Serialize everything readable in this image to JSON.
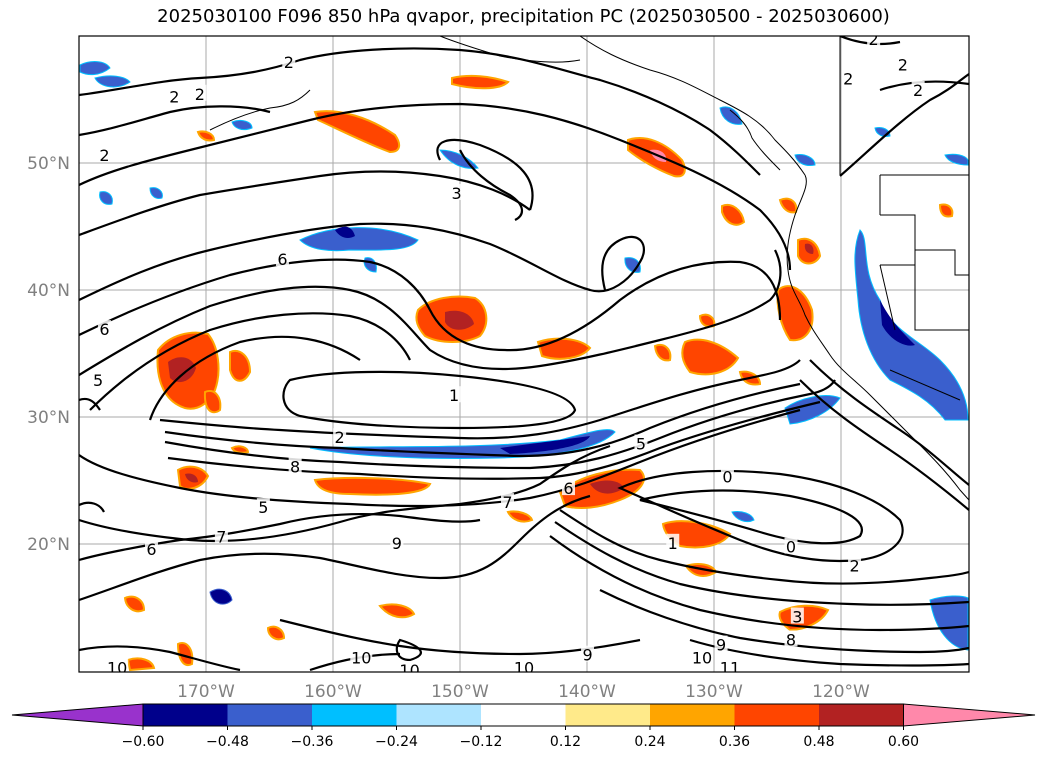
{
  "title": "2025030100 F096 850 hPa qvapor, precipitation PC (2025030500 - 2025030600)",
  "lat_labels": [
    "50°N",
    "40°N",
    "30°N",
    "20°N"
  ],
  "lon_labels": [
    "170°W",
    "160°W",
    "150°W",
    "140°W",
    "130°W",
    "120°W"
  ],
  "colorbar": {
    "ticks": [
      "−0.60",
      "−0.48",
      "−0.36",
      "−0.24",
      "−0.12",
      "0.12",
      "0.24",
      "0.36",
      "0.48",
      "0.60"
    ],
    "colors": [
      "#9932cc",
      "#00008b",
      "#3a5fcd",
      "#00bfff",
      "#aee4ff",
      "#ffffff",
      "#ffea8a",
      "#ffa500",
      "#ff4500",
      "#b22222",
      "#ff88aa"
    ]
  },
  "contour_labels": [
    {
      "text": "2",
      "lon": -163.5,
      "lat": 57.8
    },
    {
      "text": "2",
      "lon": -172.5,
      "lat": 55.1
    },
    {
      "text": "2",
      "lon": -170.5,
      "lat": 55.3
    },
    {
      "text": "2",
      "lon": -178.0,
      "lat": 50.5
    },
    {
      "text": "3",
      "lon": -150.3,
      "lat": 47.5
    },
    {
      "text": "6",
      "lon": -164.0,
      "lat": 42.3
    },
    {
      "text": "6",
      "lon": -178.0,
      "lat": 36.8
    },
    {
      "text": "5",
      "lon": -178.5,
      "lat": 32.8
    },
    {
      "text": "1",
      "lon": -150.5,
      "lat": 31.6
    },
    {
      "text": "2",
      "lon": -159.5,
      "lat": 28.3
    },
    {
      "text": "5",
      "lon": -135.8,
      "lat": 27.8
    },
    {
      "text": "8",
      "lon": -163.0,
      "lat": 26.0
    },
    {
      "text": "0",
      "lon": -129.0,
      "lat": 25.2
    },
    {
      "text": "6",
      "lon": -141.5,
      "lat": 24.3
    },
    {
      "text": "7",
      "lon": -146.3,
      "lat": 23.2
    },
    {
      "text": "5",
      "lon": -165.5,
      "lat": 22.8
    },
    {
      "text": "7",
      "lon": -168.8,
      "lat": 20.5
    },
    {
      "text": "6",
      "lon": -174.3,
      "lat": 19.5
    },
    {
      "text": "9",
      "lon": -155.0,
      "lat": 20.0
    },
    {
      "text": "1",
      "lon": -133.3,
      "lat": 20.0
    },
    {
      "text": "0",
      "lon": -124.0,
      "lat": 19.7
    },
    {
      "text": "2",
      "lon": -119.0,
      "lat": 18.2
    },
    {
      "text": "3",
      "lon": -123.5,
      "lat": 14.2
    },
    {
      "text": "8",
      "lon": -124.0,
      "lat": 12.4
    },
    {
      "text": "9",
      "lon": -129.5,
      "lat": 12.0
    },
    {
      "text": "10",
      "lon": -131.0,
      "lat": 11.0
    },
    {
      "text": "11",
      "lon": -128.8,
      "lat": 10.2
    },
    {
      "text": "9",
      "lon": -140.0,
      "lat": 11.2
    },
    {
      "text": "10",
      "lon": -157.8,
      "lat": 11.0
    },
    {
      "text": "10",
      "lon": -154.0,
      "lat": 10.0
    },
    {
      "text": "10",
      "lon": -177.0,
      "lat": 10.2
    },
    {
      "text": "10",
      "lon": -145.0,
      "lat": 10.2
    },
    {
      "text": "2",
      "lon": -119.5,
      "lat": 56.5
    },
    {
      "text": "2",
      "lon": -117.5,
      "lat": 59.6
    },
    {
      "text": "2",
      "lon": -115.2,
      "lat": 57.6
    },
    {
      "text": "2",
      "lon": -114.0,
      "lat": 55.6
    }
  ]
}
